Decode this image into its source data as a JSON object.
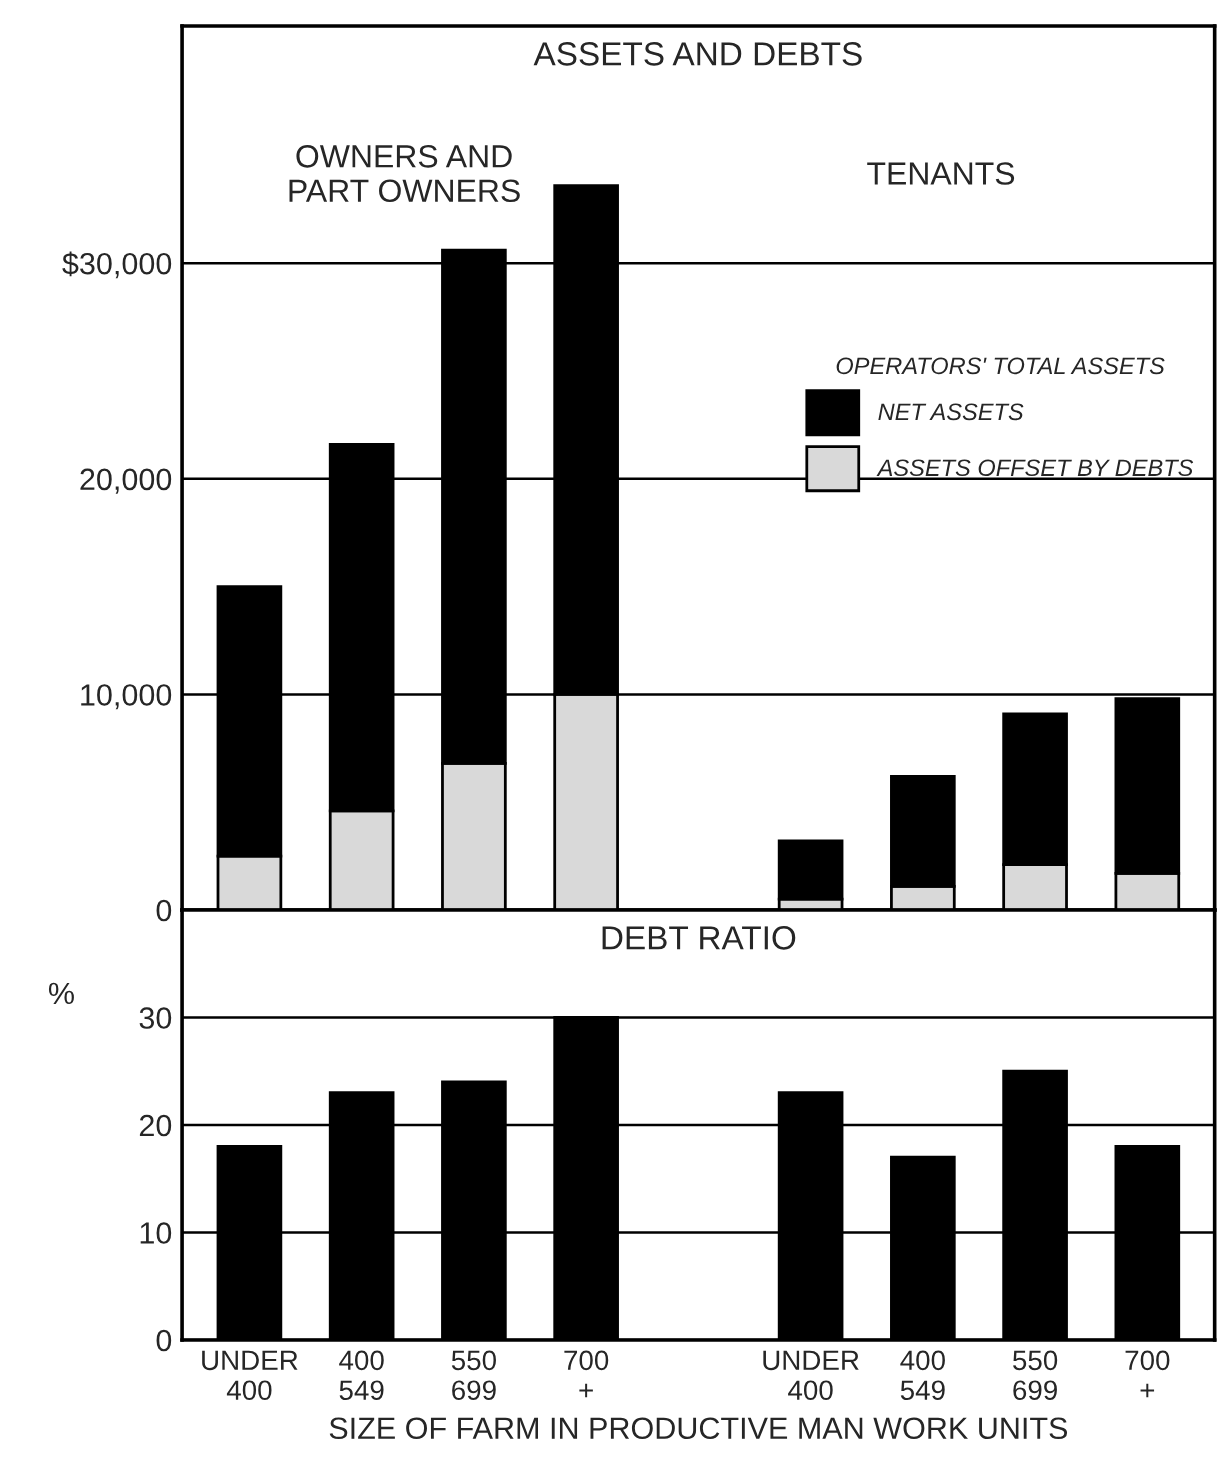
{
  "chart_data": [
    {
      "type": "bar",
      "title": "ASSETS AND DEBTS",
      "stacked": true,
      "categories": [
        null,
        null,
        null,
        null,
        null,
        null,
        null,
        null,
        null
      ],
      "series": [
        {
          "name": "ASSETS OFFSET BY DEBTS",
          "color": "#d9d9d9",
          "values": [
            2500,
            4600,
            6800,
            10000,
            null,
            500,
            1100,
            2100,
            1700
          ]
        },
        {
          "name": "NET ASSETS",
          "color": "#000000",
          "values": [
            12500,
            17000,
            23800,
            23600,
            null,
            2700,
            5100,
            7000,
            8100
          ]
        }
      ],
      "legend_title": "OPERATORS' TOTAL ASSETS",
      "legend": "center right",
      "annotations": [
        "OWNERS AND\nPART OWNERS",
        "TENANTS"
      ],
      "ylim": [
        0,
        41000
      ],
      "yticks": [
        0,
        {
          "value": 10000,
          "label": "10,000"
        },
        {
          "value": 20000,
          "label": "20,000"
        },
        {
          "value": 30000,
          "label": "$30,000"
        }
      ],
      "grid": "y",
      "tick_labels": "y"
    },
    {
      "type": "bar",
      "title": "DEBT RATIO",
      "ylabel": "%",
      "xlabel": "SIZE OF FARM IN PRODUCTIVE MAN WORK UNITS",
      "categories": [
        "UNDER\n400",
        "400\n549",
        "550\n699",
        "700\n+",
        null,
        "UNDER\n400",
        "400\n549",
        "550\n699",
        "700\n+"
      ],
      "series": [
        {
          "color": "#000000",
          "values": [
            18,
            23,
            24,
            30,
            null,
            23,
            17,
            25,
            18
          ]
        }
      ],
      "ylim": [
        0,
        40
      ],
      "yticks": [
        0,
        10,
        20,
        30
      ],
      "grid": "y"
    }
  ]
}
